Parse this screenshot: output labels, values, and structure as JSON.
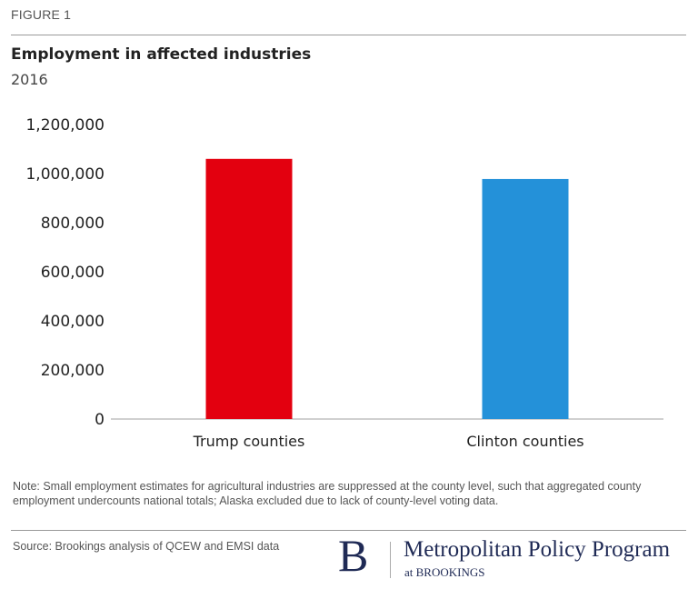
{
  "figure_label": "FIGURE 1",
  "title": "Employment in affected industries",
  "subtitle": "2016",
  "note": "Note: Small employment estimates for agricultural industries are suppressed at the county level, such that aggregated county employment undercounts national totals; Alaska excluded due to lack of county-level voting data.",
  "source": "Source: Brookings analysis of QCEW and EMSI data",
  "logo": {
    "letter": "B",
    "main": "Metropolitan Policy Program",
    "sub": "at BROOKINGS"
  },
  "chart_data": {
    "type": "bar",
    "title": "Employment in affected industries",
    "subtitle": "2016",
    "categories": [
      "Trump counties",
      "Clinton counties"
    ],
    "values": [
      1060000,
      978000
    ],
    "colors": [
      "#e3000f",
      "#2491d9"
    ],
    "xlabel": "",
    "ylabel": "",
    "ylim": [
      0,
      1200000
    ],
    "yticks": [
      0,
      200000,
      400000,
      600000,
      800000,
      1000000,
      1200000
    ],
    "ytick_labels": [
      "0",
      "200,000",
      "400,000",
      "600,000",
      "800,000",
      "1,000,000",
      "1,200,000"
    ],
    "grid": false,
    "legend": "none"
  }
}
